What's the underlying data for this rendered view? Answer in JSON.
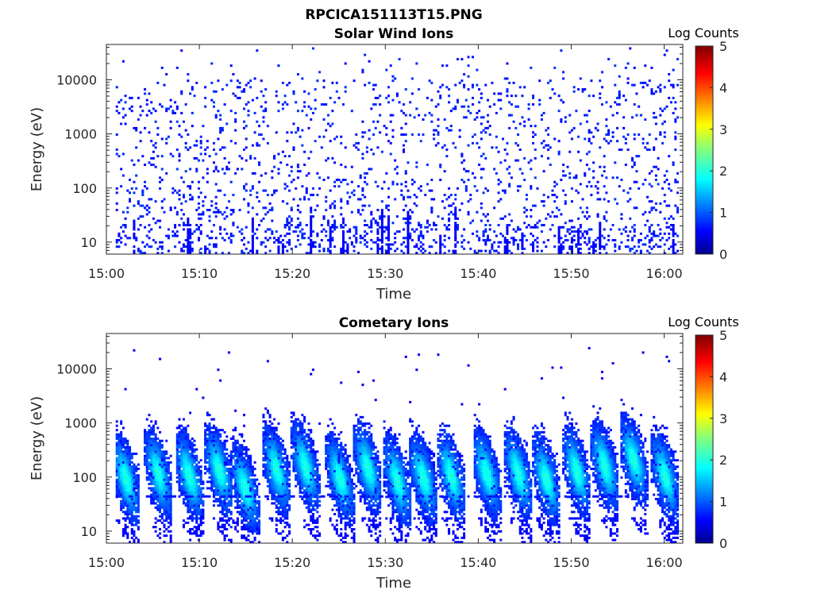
{
  "figure": {
    "title": "RPCICA151113T15.PNG"
  },
  "chart_data": [
    {
      "type": "heatmap",
      "title": "Solar Wind Ions",
      "xlabel": "Time",
      "ylabel": "Energy (eV)",
      "x_ticks": [
        "15:00",
        "15:10",
        "15:20",
        "15:30",
        "15:40",
        "15:50",
        "16:00"
      ],
      "x_range_minutes": [
        0,
        62
      ],
      "y_scale": "log",
      "y_range_eV": [
        6,
        45000
      ],
      "y_ticks": [
        {
          "value": 10,
          "label": "10"
        },
        {
          "value": 100,
          "label": "100"
        },
        {
          "value": 1000,
          "label": "1000"
        },
        {
          "value": 10000,
          "label": "10000"
        }
      ],
      "colorbar": {
        "label": "Log Counts",
        "range": [
          0,
          5
        ],
        "ticks": [
          "0",
          "1",
          "2",
          "3",
          "4",
          "5"
        ],
        "colormap": "jet"
      },
      "description_of_values": "Sparse single-count noise (log counts ~0) scattered across all energies, denser below ~100 eV",
      "seed": 11
    },
    {
      "type": "heatmap",
      "title": "Cometary Ions",
      "xlabel": "Time",
      "ylabel": "Energy (eV)",
      "x_ticks": [
        "15:00",
        "15:10",
        "15:20",
        "15:30",
        "15:40",
        "15:50",
        "16:00"
      ],
      "x_range_minutes": [
        0,
        62
      ],
      "y_scale": "log",
      "y_range_eV": [
        6,
        45000
      ],
      "y_ticks": [
        {
          "value": 10,
          "label": "10"
        },
        {
          "value": 100,
          "label": "100"
        },
        {
          "value": 1000,
          "label": "1000"
        },
        {
          "value": 10000,
          "label": "10000"
        }
      ],
      "colorbar": {
        "label": "Log Counts",
        "range": [
          0,
          5
        ],
        "ticks": [
          "0",
          "1",
          "2",
          "3",
          "4",
          "5"
        ],
        "colormap": "jet"
      },
      "bursts": [
        {
          "t": 2.0,
          "e": 90
        },
        {
          "t": 5.5,
          "e": 110
        },
        {
          "t": 8.8,
          "e": 100
        },
        {
          "t": 12.0,
          "e": 130
        },
        {
          "t": 14.8,
          "e": 60
        },
        {
          "t": 18.2,
          "e": 130
        },
        {
          "t": 21.3,
          "e": 150
        },
        {
          "t": 25.0,
          "e": 90
        },
        {
          "t": 28.0,
          "e": 140
        },
        {
          "t": 31.2,
          "e": 80
        },
        {
          "t": 34.0,
          "e": 90
        },
        {
          "t": 37.0,
          "e": 100
        },
        {
          "t": 40.8,
          "e": 110
        },
        {
          "t": 44.2,
          "e": 110
        },
        {
          "t": 47.2,
          "e": 90
        },
        {
          "t": 50.5,
          "e": 120
        },
        {
          "t": 53.5,
          "e": 150
        },
        {
          "t": 56.6,
          "e": 200
        },
        {
          "t": 60.0,
          "e": 100
        }
      ],
      "seed": 29
    }
  ]
}
